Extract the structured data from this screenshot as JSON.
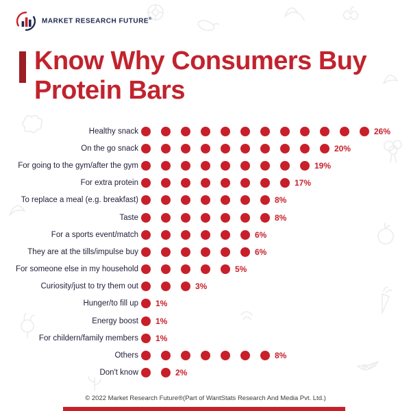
{
  "logo": {
    "brand": "MARKET RESEARCH FUTURE",
    "registered": "®"
  },
  "title": {
    "line1": "Know Why Consumers Buy",
    "line2": "Protein Bars"
  },
  "footer": {
    "text": "© 2022 Market Research Future®(Part of WantStats Research And Media Pvt. Ltd.)"
  },
  "colors": {
    "accent_red": "#c8202b",
    "title_red": "#c1232d",
    "bar_maroon": "#9c1d24",
    "navy": "#1d2750",
    "label_text": "#22213a"
  },
  "chart_data": {
    "type": "bar",
    "variant": "dot-row",
    "title": "Know Why Consumers Buy Protein Bars",
    "unit": "%",
    "legend": "none",
    "grid": false,
    "categories": [
      "Healthy snack",
      "On the go snack",
      "For going to the gym/after the gym",
      "For extra protein",
      "To replace a meal (e.g. breakfast)",
      "Taste",
      "For a sports event/match",
      "They are at the tills/impulse buy",
      "For someone else in my household",
      "Curiosity/just to try them out",
      "Hunger/to fill up",
      "Energy boost",
      "For childern/family members",
      "Others",
      "Don't know"
    ],
    "values": [
      26,
      20,
      19,
      17,
      8,
      8,
      6,
      6,
      5,
      3,
      1,
      1,
      1,
      8,
      2
    ],
    "labels": [
      "26%",
      "20%",
      "19%",
      "17%",
      "8%",
      "8%",
      "6%",
      "6%",
      "5%",
      "3%",
      "1%",
      "1%",
      "1%",
      "8%",
      "2%"
    ],
    "dot_counts": [
      12,
      10,
      9,
      8,
      7,
      7,
      6,
      6,
      5,
      3,
      1,
      1,
      1,
      7,
      2
    ],
    "xlim": [
      0,
      28
    ]
  }
}
